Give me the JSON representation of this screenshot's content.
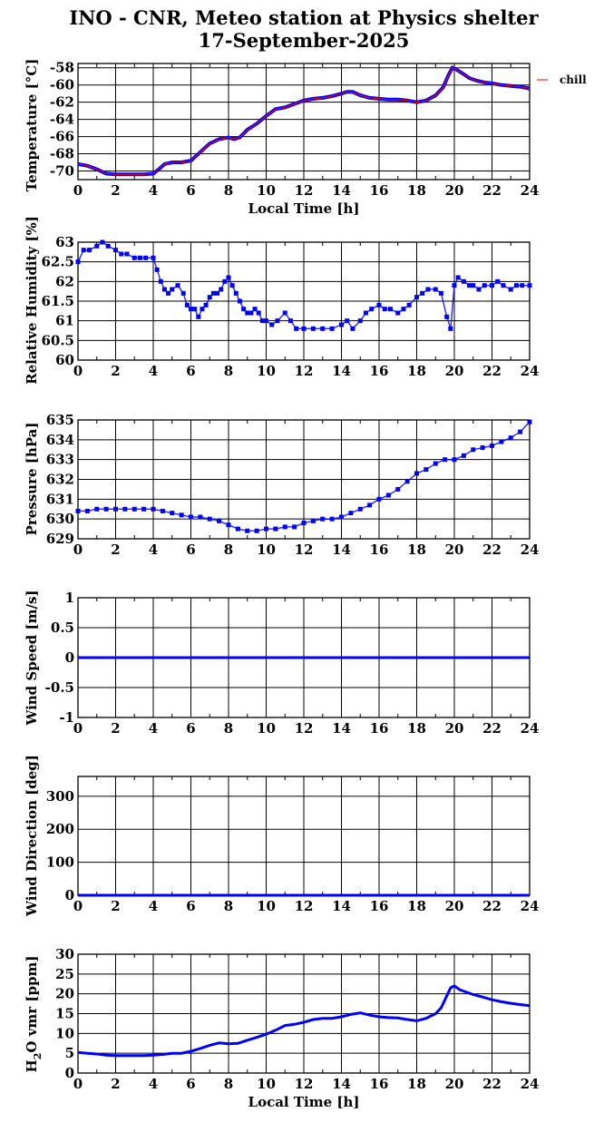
{
  "header": {
    "title_line1": "INO - CNR, Meteo station at Physics shelter",
    "title_line2": "17-September-2025"
  },
  "colors": {
    "series": "#0000ff",
    "chill": "#ff0000",
    "grid": "#000000",
    "text": "#000000"
  },
  "chart_data": [
    {
      "type": "line",
      "ylabel": "Temperature [°C]",
      "xlabel": "Local Time [h]",
      "xlim": [
        0,
        24
      ],
      "ylim": [
        -71,
        -57.5
      ],
      "yticks": [
        -70,
        -68,
        -66,
        -64,
        -62,
        -60,
        -58
      ],
      "xticks": [
        0,
        2,
        4,
        6,
        8,
        10,
        12,
        14,
        16,
        18,
        20,
        22,
        24
      ],
      "legend": "chill",
      "legend_position": "right",
      "series": [
        {
          "x": [
            0,
            0.5,
            1,
            1.5,
            2,
            2.5,
            3,
            3.5,
            4,
            4.3,
            4.6,
            5,
            5.5,
            6,
            6.5,
            7,
            7.5,
            8,
            8.3,
            8.6,
            9,
            9.5,
            10,
            10.5,
            11,
            11.5,
            12,
            12.5,
            13,
            13.5,
            14,
            14.3,
            14.6,
            15,
            15.5,
            16,
            16.5,
            17,
            17.5,
            18,
            18.5,
            19,
            19.4,
            19.7,
            19.9,
            20.1,
            20.4,
            20.8,
            21.2,
            21.6,
            22,
            22.5,
            23,
            23.5,
            24
          ],
          "values": [
            -69.2,
            -69.4,
            -69.8,
            -70.3,
            -70.4,
            -70.4,
            -70.4,
            -70.4,
            -70.3,
            -69.8,
            -69.2,
            -69.0,
            -69.0,
            -68.8,
            -67.8,
            -66.8,
            -66.3,
            -66.1,
            -66.3,
            -66.1,
            -65.2,
            -64.5,
            -63.6,
            -62.8,
            -62.6,
            -62.2,
            -61.8,
            -61.6,
            -61.5,
            -61.3,
            -61.0,
            -60.8,
            -60.8,
            -61.2,
            -61.5,
            -61.6,
            -61.7,
            -61.7,
            -61.8,
            -62.0,
            -61.8,
            -61.2,
            -60.3,
            -58.8,
            -58.0,
            -58.2,
            -58.6,
            -59.2,
            -59.5,
            -59.7,
            -59.8,
            -60.0,
            -60.1,
            -60.2,
            -60.4
          ]
        }
      ]
    },
    {
      "type": "scatter",
      "ylabel": "Relative Humidity [%]",
      "xlim": [
        0,
        24
      ],
      "ylim": [
        60,
        63
      ],
      "yticks": [
        60,
        60.5,
        61,
        61.5,
        62,
        62.5,
        63
      ],
      "ytick_labels": [
        "60",
        "60.5",
        "61",
        "61.5",
        "62",
        "62.5",
        "63"
      ],
      "xticks": [
        0,
        2,
        4,
        6,
        8,
        10,
        12,
        14,
        16,
        18,
        20,
        22,
        24
      ],
      "series": [
        {
          "x": [
            0,
            0.3,
            0.6,
            1.0,
            1.3,
            1.6,
            2.0,
            2.3,
            2.6,
            3.0,
            3.3,
            3.6,
            4.0,
            4.2,
            4.4,
            4.6,
            4.8,
            5.0,
            5.3,
            5.6,
            5.8,
            6.0,
            6.2,
            6.4,
            6.6,
            6.8,
            7.0,
            7.2,
            7.4,
            7.6,
            7.8,
            8.0,
            8.2,
            8.4,
            8.6,
            8.8,
            9.0,
            9.2,
            9.4,
            9.6,
            9.8,
            10.0,
            10.3,
            10.6,
            11.0,
            11.3,
            11.6,
            12.0,
            12.5,
            13.0,
            13.5,
            14.0,
            14.3,
            14.6,
            15.0,
            15.3,
            15.6,
            16.0,
            16.3,
            16.6,
            17.0,
            17.3,
            17.6,
            18.0,
            18.3,
            18.6,
            19.0,
            19.3,
            19.6,
            19.8,
            20.0,
            20.2,
            20.5,
            20.8,
            21.0,
            21.3,
            21.6,
            22.0,
            22.3,
            22.6,
            23.0,
            23.3,
            23.6,
            24.0
          ],
          "values": [
            62.5,
            62.8,
            62.8,
            62.9,
            63.0,
            62.9,
            62.8,
            62.7,
            62.7,
            62.6,
            62.6,
            62.6,
            62.6,
            62.3,
            62.0,
            61.8,
            61.7,
            61.8,
            61.9,
            61.7,
            61.4,
            61.3,
            61.3,
            61.1,
            61.3,
            61.4,
            61.6,
            61.7,
            61.7,
            61.8,
            62.0,
            62.1,
            61.9,
            61.7,
            61.5,
            61.3,
            61.2,
            61.2,
            61.3,
            61.2,
            61.0,
            61.0,
            60.9,
            61.0,
            61.2,
            61.0,
            60.8,
            60.8,
            60.8,
            60.8,
            60.8,
            60.9,
            61.0,
            60.8,
            61.0,
            61.2,
            61.3,
            61.4,
            61.3,
            61.3,
            61.2,
            61.3,
            61.4,
            61.6,
            61.7,
            61.8,
            61.8,
            61.7,
            61.1,
            60.8,
            61.9,
            62.1,
            62.0,
            61.9,
            61.9,
            61.8,
            61.9,
            61.9,
            62.0,
            61.9,
            61.8,
            61.9,
            61.9,
            61.9
          ]
        }
      ]
    },
    {
      "type": "scatter",
      "ylabel": "Pressure [hPa]",
      "xlim": [
        0,
        24
      ],
      "ylim": [
        629,
        635
      ],
      "yticks": [
        629,
        630,
        631,
        632,
        633,
        634,
        635
      ],
      "xticks": [
        0,
        2,
        4,
        6,
        8,
        10,
        12,
        14,
        16,
        18,
        20,
        22,
        24
      ],
      "series": [
        {
          "x": [
            0,
            0.5,
            1,
            1.5,
            2,
            2.5,
            3,
            3.5,
            4,
            4.5,
            5,
            5.5,
            6,
            6.5,
            7,
            7.5,
            8,
            8.5,
            9,
            9.5,
            10,
            10.5,
            11,
            11.5,
            12,
            12.5,
            13,
            13.5,
            14,
            14.5,
            15,
            15.5,
            16,
            16.5,
            17,
            17.5,
            18,
            18.5,
            19,
            19.5,
            20,
            20.5,
            21,
            21.5,
            22,
            22.5,
            23,
            23.5,
            24
          ],
          "values": [
            630.4,
            630.4,
            630.5,
            630.5,
            630.5,
            630.5,
            630.5,
            630.5,
            630.5,
            630.4,
            630.3,
            630.2,
            630.1,
            630.1,
            630.0,
            629.9,
            629.7,
            629.5,
            629.4,
            629.4,
            629.5,
            629.5,
            629.6,
            629.6,
            629.8,
            629.9,
            630.0,
            630.0,
            630.1,
            630.3,
            630.5,
            630.7,
            631.0,
            631.2,
            631.5,
            631.9,
            632.3,
            632.5,
            632.8,
            633.0,
            633.0,
            633.2,
            633.5,
            633.6,
            633.7,
            633.9,
            634.1,
            634.4,
            634.9
          ]
        }
      ]
    },
    {
      "type": "line",
      "ylabel": "Wind Speed [m/s]",
      "xlim": [
        0,
        24
      ],
      "ylim": [
        -1,
        1
      ],
      "yticks": [
        -1,
        -0.5,
        0,
        0.5,
        1
      ],
      "ytick_labels": [
        "-1",
        "-0.5",
        "0",
        "0.5",
        "1"
      ],
      "xticks": [
        0,
        2,
        4,
        6,
        8,
        10,
        12,
        14,
        16,
        18,
        20,
        22,
        24
      ],
      "series": [
        {
          "x": [
            0,
            24
          ],
          "values": [
            0,
            0
          ]
        }
      ]
    },
    {
      "type": "line",
      "ylabel": "Wind Direction [deg]",
      "xlim": [
        0,
        24
      ],
      "ylim": [
        0,
        360
      ],
      "yticks": [
        0,
        100,
        200,
        300
      ],
      "xticks": [
        0,
        2,
        4,
        6,
        8,
        10,
        12,
        14,
        16,
        18,
        20,
        22,
        24
      ],
      "series": [
        {
          "x": [
            0,
            24
          ],
          "values": [
            0,
            0
          ]
        }
      ]
    },
    {
      "type": "line",
      "ylabel": "H2O vmr [ppm]",
      "xlabel": "Local Time [h]",
      "xlim": [
        0,
        24
      ],
      "ylim": [
        0,
        30
      ],
      "yticks": [
        0,
        5,
        10,
        15,
        20,
        25,
        30
      ],
      "xticks": [
        0,
        2,
        4,
        6,
        8,
        10,
        12,
        14,
        16,
        18,
        20,
        22,
        24
      ],
      "series": [
        {
          "x": [
            0,
            0.5,
            1,
            1.5,
            2,
            2.5,
            3,
            3.5,
            4,
            4.5,
            5,
            5.5,
            6,
            6.5,
            7,
            7.5,
            8,
            8.5,
            9,
            9.5,
            10,
            10.5,
            11,
            11.5,
            12,
            12.5,
            13,
            13.5,
            14,
            14.5,
            15,
            15.5,
            16,
            16.5,
            17,
            17.5,
            18,
            18.5,
            19,
            19.3,
            19.6,
            19.8,
            20,
            20.3,
            20.6,
            21,
            21.5,
            22,
            22.5,
            23,
            23.5,
            24
          ],
          "values": [
            5.2,
            5.0,
            4.8,
            4.5,
            4.4,
            4.4,
            4.4,
            4.4,
            4.5,
            4.7,
            5.0,
            5.0,
            5.5,
            6.2,
            7.0,
            7.6,
            7.4,
            7.5,
            8.3,
            9.0,
            9.8,
            10.8,
            12.0,
            12.3,
            12.8,
            13.5,
            13.8,
            13.8,
            14.2,
            14.8,
            15.2,
            14.6,
            14.2,
            14.0,
            13.9,
            13.5,
            13.2,
            13.8,
            15.0,
            16.5,
            19.5,
            21.5,
            22.0,
            21.0,
            20.5,
            19.8,
            19.2,
            18.5,
            18.0,
            17.6,
            17.3,
            17.0
          ]
        }
      ]
    }
  ]
}
